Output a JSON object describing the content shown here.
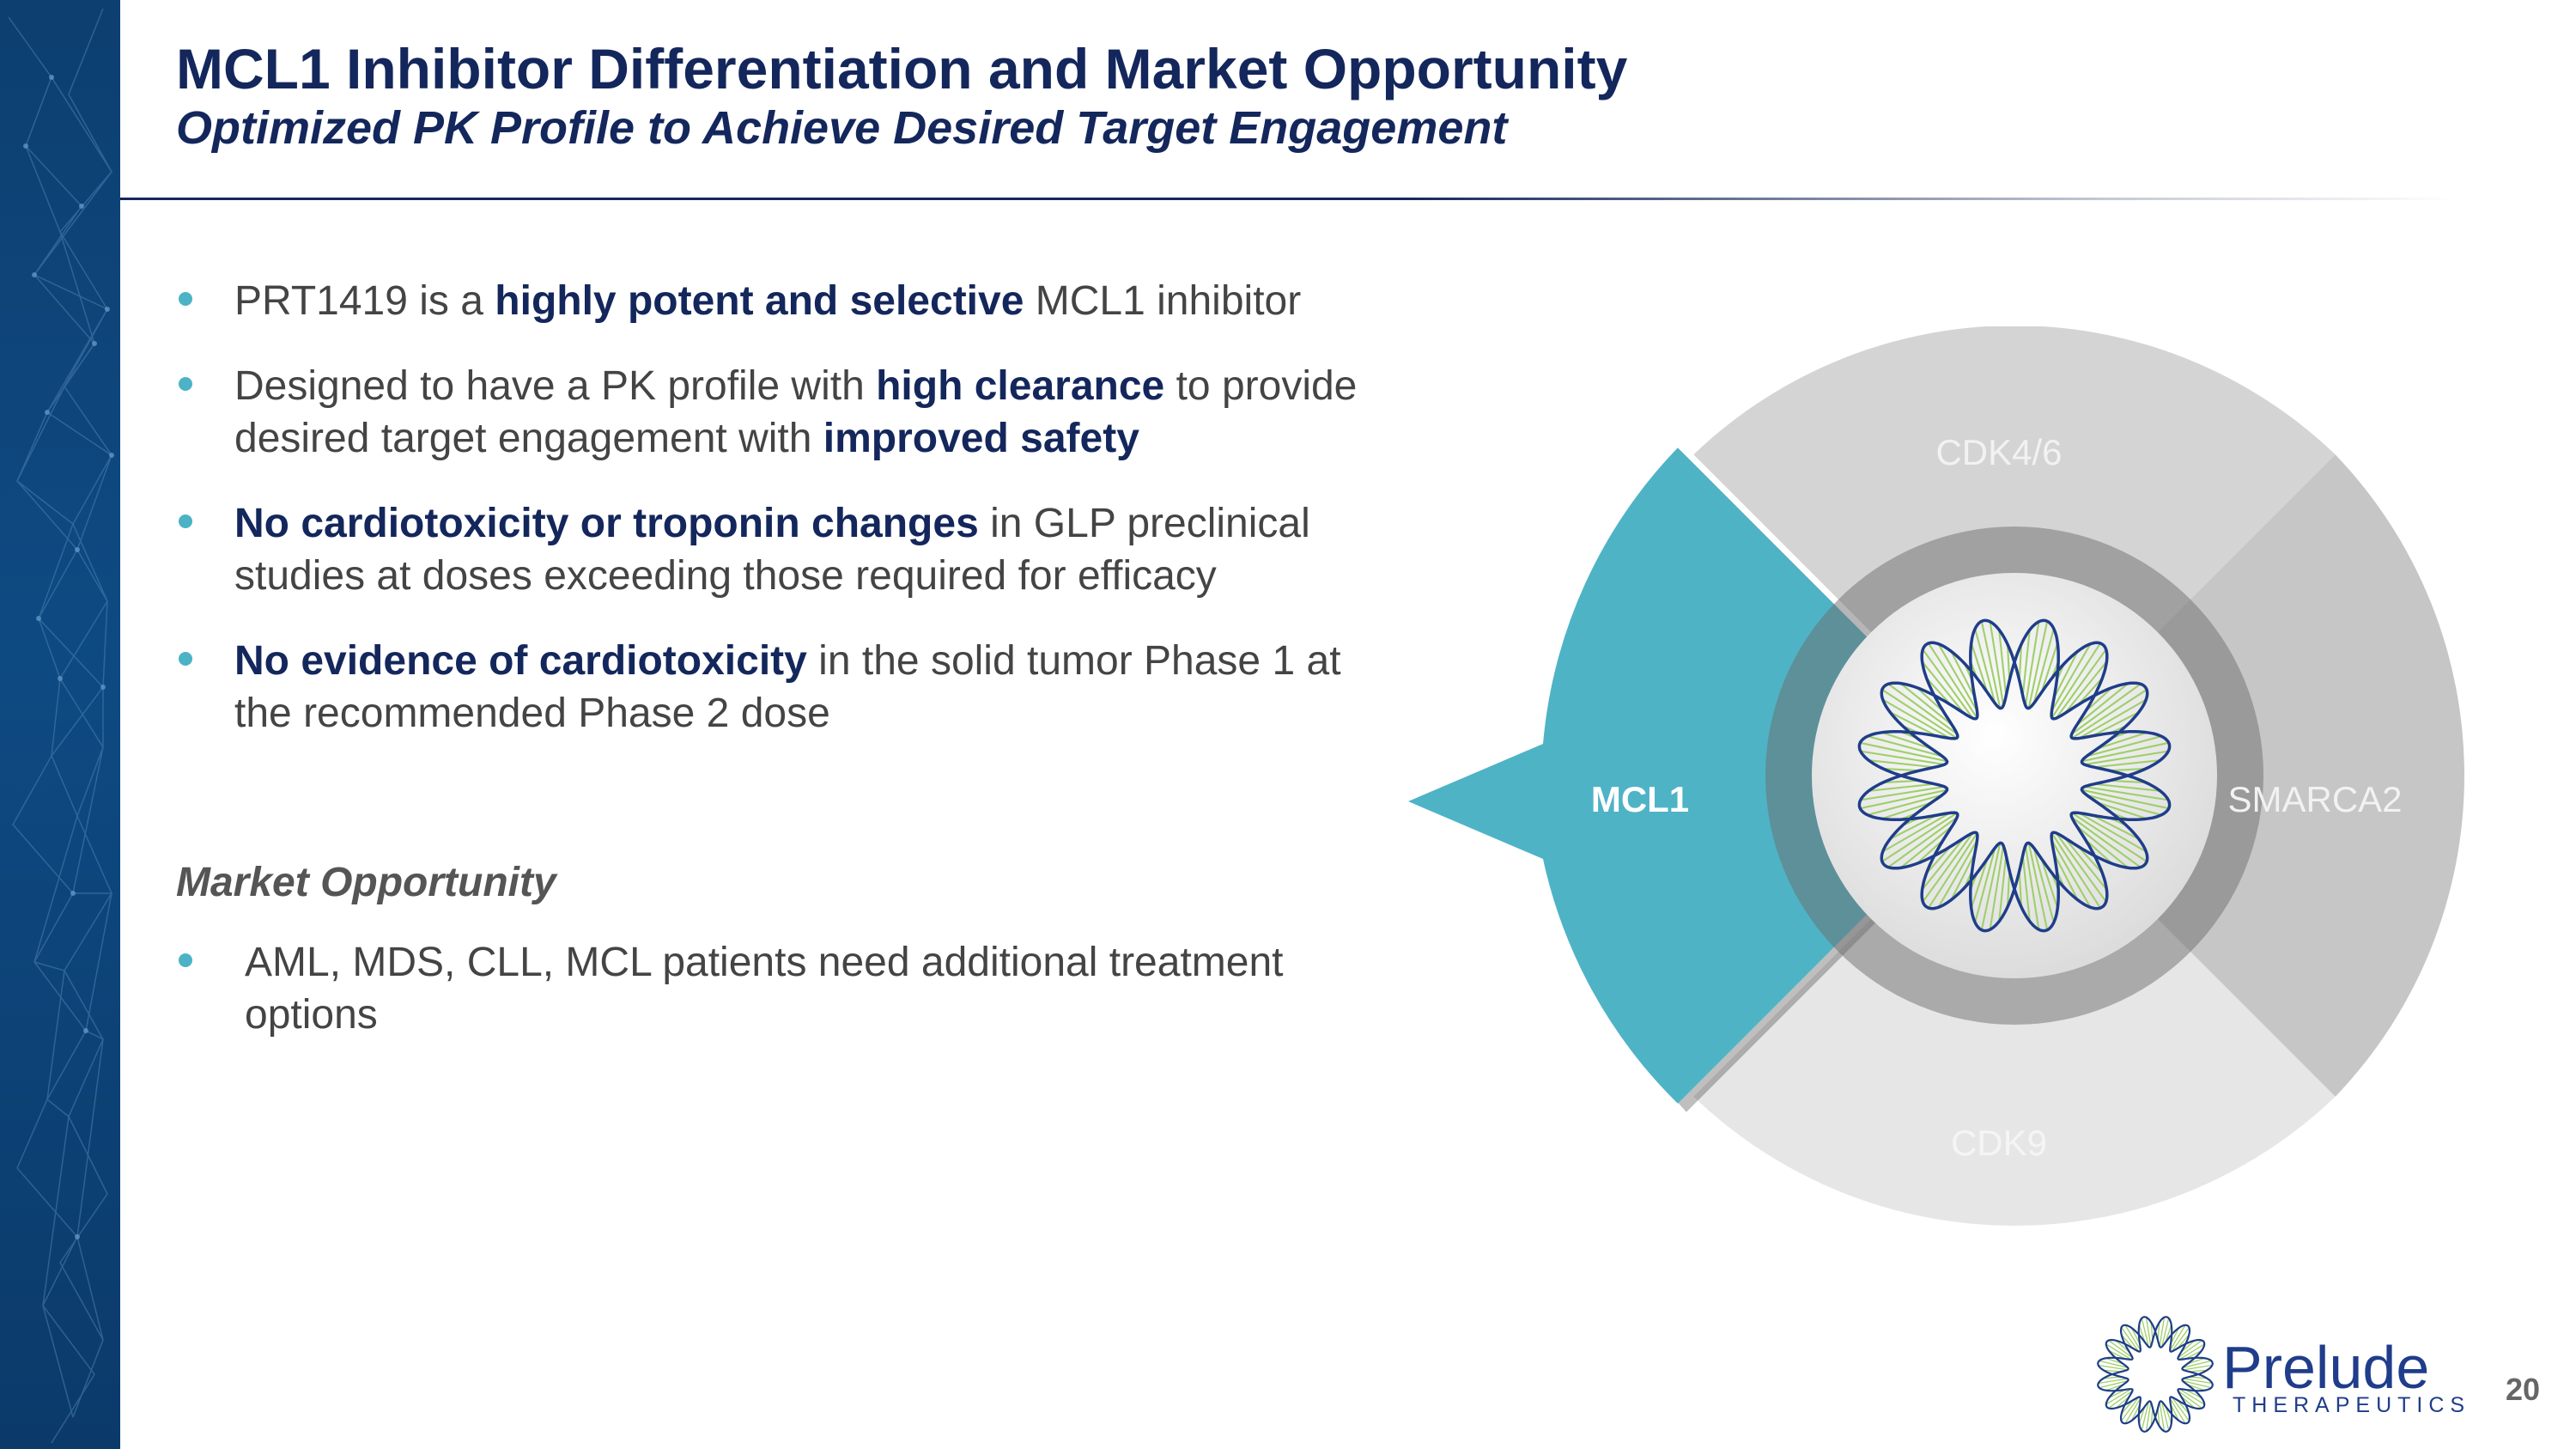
{
  "header": {
    "title": "MCL1 Inhibitor Differentiation and Market Opportunity",
    "subtitle": "Optimized PK Profile to Achieve Desired Target Engagement"
  },
  "bullets": [
    {
      "segments": [
        {
          "text": "PRT1419 is a ",
          "bold": false
        },
        {
          "text": "highly potent and selective",
          "bold": true
        },
        {
          "text": " MCL1 inhibitor",
          "bold": false
        }
      ]
    },
    {
      "segments": [
        {
          "text": "Designed to have a PK profile with ",
          "bold": false
        },
        {
          "text": "high clearance",
          "bold": true
        },
        {
          "text": " to provide desired target engagement with ",
          "bold": false
        },
        {
          "text": "improved safety",
          "bold": true
        }
      ]
    },
    {
      "segments": [
        {
          "text": "No cardiotoxicity or troponin changes",
          "bold": true
        },
        {
          "text": " in GLP preclinical studies at doses exceeding those required for efficacy",
          "bold": false
        }
      ]
    },
    {
      "segments": [
        {
          "text": "No evidence of cardiotoxicity",
          "bold": true
        },
        {
          "text": " in the solid tumor Phase 1 at the recommended Phase 2 dose",
          "bold": false
        }
      ]
    }
  ],
  "market": {
    "heading": "Market Opportunity",
    "bullet": "AML, MDS, CLL, MCL patients need additional treatment options"
  },
  "diagram": {
    "segments": {
      "mcl1": "MCL1",
      "cdk46": "CDK4/6",
      "smarca2": "SMARCA2",
      "cdk9": "CDK9"
    },
    "colors": {
      "mcl1": "#4fb3c6",
      "cdk46": "#d4d4d4",
      "smarca2": "#c6c6c6",
      "cdk9": "#e6e6e6"
    },
    "center_icon": "dna-ring-icon"
  },
  "logo": {
    "name": "Prelude",
    "sub": "THERAPEUTICS",
    "icon": "dna-ring-logo-icon"
  },
  "page_number": "20"
}
